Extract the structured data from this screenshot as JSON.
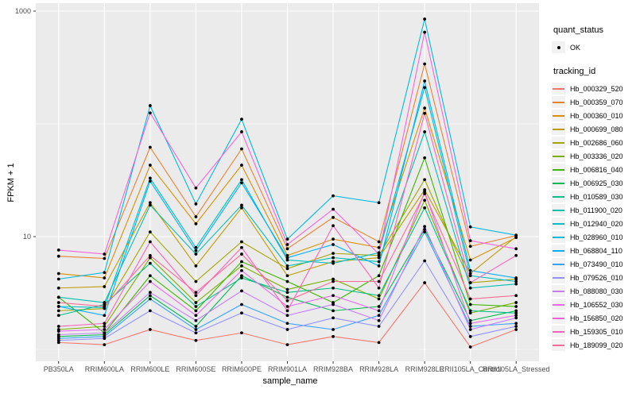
{
  "chart_data": {
    "type": "line",
    "title": "",
    "xlabel": "sample_name",
    "ylabel": "FPKM + 1",
    "y_scale": "log10",
    "y_tick_labels": [
      "1000",
      "10"
    ],
    "y_major_breaks": [
      1000,
      10
    ],
    "y_minor_breaks": [
      100,
      1
    ],
    "ylim": [
      0.78,
      1200
    ],
    "grid": true,
    "legend_position": "right",
    "point_color": "#000000",
    "panel_background": "#EBEBEB",
    "gridline_color": "#FFFFFF",
    "tick_label_color": "#4D4D4D",
    "x_categories": [
      "PB350LA",
      "RRIM600LA",
      "RRIM600LE",
      "RRIM600SE",
      "RRIM600PE",
      "RRIM901LA",
      "RRIM928BA",
      "RRIM928LA",
      "RRIM928LE",
      "RRII105LA_Control",
      "RRII105LA_Stressed"
    ],
    "series": [
      {
        "tracking_id": "Hb_000329_520",
        "color": "#F8766D",
        "values": [
          1.15,
          1.1,
          1.5,
          1.2,
          1.4,
          1.1,
          1.3,
          1.15,
          3.9,
          1.05,
          1.5
        ]
      },
      {
        "tracking_id": "Hb_000359_070",
        "color": "#EA8331",
        "values": [
          6.7,
          6.4,
          62,
          15,
          60,
          7.8,
          14.8,
          9,
          340,
          8.2,
          10.2
        ]
      },
      {
        "tracking_id": "Hb_000360_010",
        "color": "#D89000",
        "values": [
          4.7,
          4.3,
          43,
          13,
          43,
          6.8,
          9.5,
          8,
          138,
          6.2,
          9.8
        ]
      },
      {
        "tracking_id": "Hb_000699_080",
        "color": "#C09B00",
        "values": [
          3.5,
          3.6,
          20,
          5.5,
          18,
          4.5,
          6,
          6.5,
          26,
          4.7,
          10
        ]
      },
      {
        "tracking_id": "Hb_002686_060",
        "color": "#A3A500",
        "values": [
          2.2,
          2.3,
          11,
          4,
          9,
          5.2,
          7.1,
          6.8,
          32,
          3.9,
          4.2
        ]
      },
      {
        "tracking_id": "Hb_003336_020",
        "color": "#7CAE00",
        "values": [
          1.5,
          1.6,
          6.5,
          2.6,
          5.5,
          3.4,
          4.2,
          2.8,
          21,
          2.1,
          2.6
        ]
      },
      {
        "tracking_id": "Hb_006816_040",
        "color": "#39B600",
        "values": [
          2.9,
          1.4,
          4.5,
          2.2,
          6,
          4,
          2.6,
          4.5,
          50,
          2.5,
          2.4
        ]
      },
      {
        "tracking_id": "Hb_006925_030",
        "color": "#00BB4E",
        "values": [
          1.3,
          1.35,
          3,
          1.6,
          4.5,
          2.9,
          2.2,
          2.4,
          11.6,
          1.8,
          2.2
        ]
      },
      {
        "tracking_id": "Hb_010589_030",
        "color": "#00C087",
        "values": [
          2,
          2.5,
          5.8,
          2.4,
          4.3,
          3.2,
          3.5,
          3,
          18,
          2.2,
          2.1
        ]
      },
      {
        "tracking_id": "Hb_011900_020",
        "color": "#00C0B2",
        "values": [
          2.9,
          2.6,
          19,
          7,
          19,
          5.5,
          6.5,
          6,
          85,
          3.5,
          3.8
        ]
      },
      {
        "tracking_id": "Hb_012940_020",
        "color": "#00BFC4",
        "values": [
          2.4,
          2.35,
          33,
          8,
          32,
          6.2,
          5.8,
          7.2,
          210,
          4.5,
          4
        ]
      },
      {
        "tracking_id": "Hb_028960_010",
        "color": "#00BAE0",
        "values": [
          4.2,
          4.8,
          145,
          19.5,
          110,
          9.5,
          23,
          20,
          850,
          12.2,
          10.3
        ]
      },
      {
        "tracking_id": "Hb_068804_110",
        "color": "#00B0F6",
        "values": [
          2.4,
          2,
          31,
          7.5,
          30,
          6.5,
          8.5,
          5.5,
          240,
          5,
          4.3
        ]
      },
      {
        "tracking_id": "Hb_073490_010",
        "color": "#35A2FF",
        "values": [
          1.25,
          1.3,
          2.8,
          1.5,
          2.5,
          1.7,
          1.5,
          2,
          11,
          1.6,
          1.7
        ]
      },
      {
        "tracking_id": "Hb_079526_010",
        "color": "#9590FF",
        "values": [
          1.2,
          1.25,
          2.2,
          1.4,
          2.1,
          1.5,
          1.9,
          1.6,
          6.1,
          1.3,
          1.6
        ]
      },
      {
        "tracking_id": "Hb_088080_030",
        "color": "#C77CFF",
        "values": [
          1.35,
          1.4,
          3.2,
          1.8,
          3.3,
          2,
          2.5,
          1.8,
          12.3,
          1.5,
          1.9
        ]
      },
      {
        "tracking_id": "Hb_106552_030",
        "color": "#E76BF3",
        "values": [
          1.45,
          1.5,
          4,
          2,
          5,
          2.4,
          3,
          2.2,
          25,
          1.7,
          2
        ]
      },
      {
        "tracking_id": "Hb_156850_020",
        "color": "#FA62DB",
        "values": [
          7.6,
          7,
          125,
          27,
          85,
          8.5,
          17.5,
          7,
          650,
          9.2,
          7.8
        ]
      },
      {
        "tracking_id": "Hb_159305_010",
        "color": "#FF62BC",
        "values": [
          1.6,
          1.7,
          9,
          3,
          8,
          2.2,
          12.5,
          3.5,
          124,
          3.9,
          6.8
        ]
      },
      {
        "tracking_id": "Hb_189099_020",
        "color": "#FF6A98",
        "values": [
          2.6,
          2.4,
          6.8,
          3.2,
          7,
          2.7,
          4,
          4,
          24,
          2.8,
          3
        ]
      }
    ],
    "legend": {
      "quant_status_title": "quant_status",
      "quant_status_items": [
        {
          "label": "OK",
          "marker": "black-point"
        }
      ],
      "tracking_id_title": "tracking_id"
    }
  }
}
